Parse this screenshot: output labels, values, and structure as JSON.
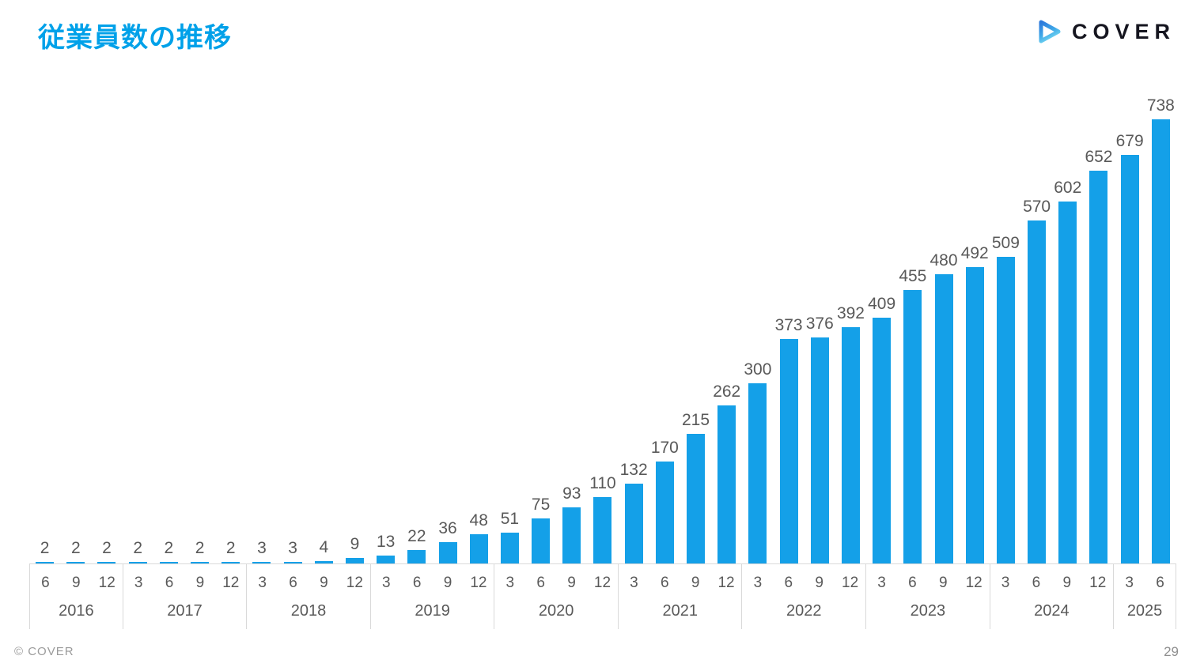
{
  "header": {
    "title": "従業員数の推移",
    "logo_text": "COVER"
  },
  "footer": {
    "copyright": "© COVER",
    "page_number": "29"
  },
  "colors": {
    "accent_blue": "#00A1E9",
    "bar_blue": "#14A0E8",
    "label_gray": "#595959",
    "axis_line_gray": "#D9D9D9"
  },
  "chart_data": {
    "type": "bar",
    "title": "従業員数の推移",
    "xlabel": "",
    "ylabel": "",
    "ylim": [
      0,
      738
    ],
    "grid": false,
    "legend": "none",
    "bar_color": "#14A0E8",
    "categories": [
      "2016-6",
      "2016-9",
      "2016-12",
      "2017-3",
      "2017-6",
      "2017-9",
      "2017-12",
      "2018-3",
      "2018-6",
      "2018-9",
      "2018-12",
      "2019-3",
      "2019-6",
      "2019-9",
      "2019-12",
      "2020-3",
      "2020-6",
      "2020-9",
      "2020-12",
      "2021-3",
      "2021-6",
      "2021-9",
      "2021-12",
      "2022-3",
      "2022-6",
      "2022-9",
      "2022-12",
      "2023-3",
      "2023-6",
      "2023-9",
      "2023-12",
      "2024-3",
      "2024-6",
      "2024-9",
      "2024-12",
      "2025-3",
      "2025-6"
    ],
    "values": [
      2,
      2,
      2,
      2,
      2,
      2,
      2,
      3,
      3,
      4,
      9,
      13,
      22,
      36,
      48,
      51,
      75,
      93,
      110,
      132,
      170,
      215,
      262,
      300,
      373,
      376,
      392,
      409,
      455,
      480,
      492,
      509,
      570,
      602,
      652,
      679,
      738
    ],
    "groups": [
      {
        "year": "2016",
        "months": [
          "6",
          "9",
          "12"
        ],
        "values": [
          2,
          2,
          2
        ]
      },
      {
        "year": "2017",
        "months": [
          "3",
          "6",
          "9",
          "12"
        ],
        "values": [
          2,
          2,
          2,
          2
        ]
      },
      {
        "year": "2018",
        "months": [
          "3",
          "6",
          "9",
          "12"
        ],
        "values": [
          3,
          3,
          4,
          9
        ]
      },
      {
        "year": "2019",
        "months": [
          "3",
          "6",
          "9",
          "12"
        ],
        "values": [
          13,
          22,
          36,
          48
        ]
      },
      {
        "year": "2020",
        "months": [
          "3",
          "6",
          "9",
          "12"
        ],
        "values": [
          51,
          75,
          93,
          110
        ]
      },
      {
        "year": "2021",
        "months": [
          "3",
          "6",
          "9",
          "12"
        ],
        "values": [
          132,
          170,
          215,
          262
        ]
      },
      {
        "year": "2022",
        "months": [
          "3",
          "6",
          "9",
          "12"
        ],
        "values": [
          300,
          373,
          376,
          392
        ]
      },
      {
        "year": "2023",
        "months": [
          "3",
          "6",
          "9",
          "12"
        ],
        "values": [
          409,
          455,
          480,
          492
        ]
      },
      {
        "year": "2024",
        "months": [
          "3",
          "6",
          "9",
          "12"
        ],
        "values": [
          509,
          570,
          602,
          652
        ]
      },
      {
        "year": "2025",
        "months": [
          "3",
          "6"
        ],
        "values": [
          679,
          738
        ]
      }
    ]
  }
}
